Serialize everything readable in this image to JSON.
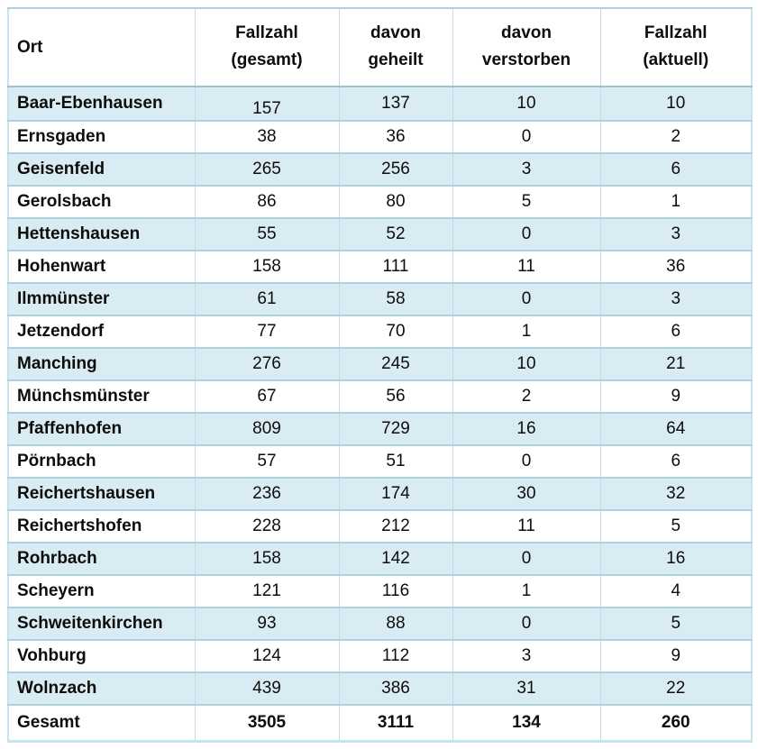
{
  "chart_data": {
    "type": "table",
    "title": "",
    "columns": [
      {
        "line1": "Ort",
        "line2": ""
      },
      {
        "line1": "Fallzahl",
        "line2": "(gesamt)"
      },
      {
        "line1": "davon",
        "line2": "geheilt"
      },
      {
        "line1": "davon",
        "line2": "verstorben"
      },
      {
        "line1": "Fallzahl",
        "line2": "(aktuell)"
      }
    ],
    "rows": [
      [
        "Baar-Ebenhausen",
        "157",
        "137",
        "10",
        "10"
      ],
      [
        "Ernsgaden",
        "38",
        "36",
        "0",
        "2"
      ],
      [
        "Geisenfeld",
        "265",
        "256",
        "3",
        "6"
      ],
      [
        "Gerolsbach",
        "86",
        "80",
        "5",
        "1"
      ],
      [
        "Hettenshausen",
        "55",
        "52",
        "0",
        "3"
      ],
      [
        "Hohenwart",
        "158",
        "111",
        "11",
        "36"
      ],
      [
        "Ilmmünster",
        "61",
        "58",
        "0",
        "3"
      ],
      [
        "Jetzendorf",
        "77",
        "70",
        "1",
        "6"
      ],
      [
        "Manching",
        "276",
        "245",
        "10",
        "21"
      ],
      [
        "Münchsmünster",
        "67",
        "56",
        "2",
        "9"
      ],
      [
        "Pfaffenhofen",
        "809",
        "729",
        "16",
        "64"
      ],
      [
        "Pörnbach",
        "57",
        "51",
        "0",
        "6"
      ],
      [
        "Reichertshausen",
        "236",
        "174",
        "30",
        "32"
      ],
      [
        "Reichertshofen",
        "228",
        "212",
        "11",
        "5"
      ],
      [
        "Rohrbach",
        "158",
        "142",
        "0",
        "16"
      ],
      [
        "Scheyern",
        "121",
        "116",
        "1",
        "4"
      ],
      [
        "Schweitenkirchen",
        "93",
        "88",
        "0",
        "5"
      ],
      [
        "Vohburg",
        "124",
        "112",
        "3",
        "9"
      ],
      [
        "Wolnzach",
        "439",
        "386",
        "31",
        "22"
      ]
    ],
    "total_row": [
      "Gesamt",
      "3505",
      "3111",
      "134",
      "260"
    ],
    "layout_hints": {
      "row_shading": "alternating, first data row shaded",
      "grid": "on"
    },
    "colors": {
      "row_shade": "#d9ecf3",
      "grid_horizontal": "#abd2de",
      "grid_vertical": "#bedde8",
      "outer_border": "#c6e4ee",
      "text": "#0d0d0d"
    }
  }
}
